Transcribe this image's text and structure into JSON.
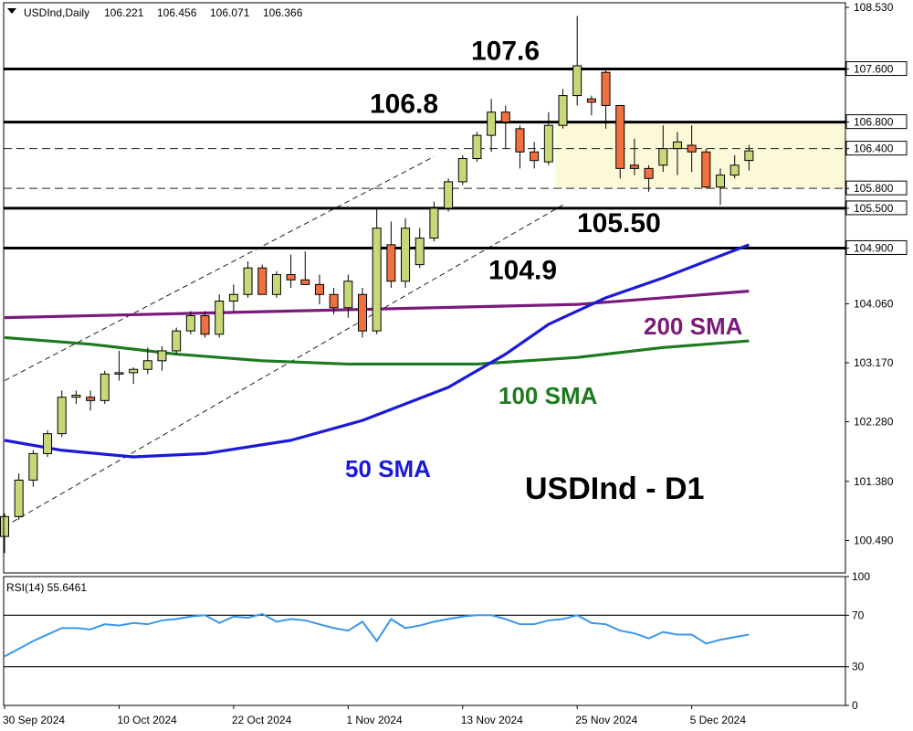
{
  "header": {
    "symbol": "USDInd,Daily",
    "open": "106.221",
    "high": "106.456",
    "low": "106.071",
    "close": "106.366"
  },
  "watermark": "USDInd - D1",
  "rsi_label": "RSI(14) 55.6461",
  "colors": {
    "bull": "#c8d878",
    "bear": "#f07040",
    "sma50": "#1a1ad8",
    "sma100": "#1e7a1e",
    "sma200": "#7a1a7a",
    "rsi": "#3a96e8",
    "zone": "#fbf9d8"
  },
  "chart_data": [
    {
      "type": "candlestick",
      "title": "USDInd - D1",
      "ylim": [
        100.0,
        108.6
      ],
      "y_ticks": [
        "108.530",
        "107.600",
        "106.800",
        "106.400",
        "105.800",
        "105.500",
        "104.900",
        "104.060",
        "103.170",
        "102.280",
        "101.380",
        "100.490"
      ],
      "x_ticks": [
        "30 Sep 2024",
        "10 Oct 2024",
        "22 Oct 2024",
        "1 Nov 2024",
        "13 Nov 2024",
        "25 Nov 2024",
        "5 Dec 2024"
      ],
      "x_tick_bars": [
        0,
        8,
        16,
        24,
        32,
        40,
        48
      ],
      "ohlc": [
        [
          100.55,
          100.9,
          100.3,
          100.85
        ],
        [
          100.85,
          101.5,
          100.8,
          101.4
        ],
        [
          101.4,
          101.85,
          101.3,
          101.8
        ],
        [
          101.8,
          102.15,
          101.75,
          102.1
        ],
        [
          102.1,
          102.75,
          102.05,
          102.65
        ],
        [
          102.65,
          102.75,
          102.55,
          102.68
        ],
        [
          102.65,
          102.75,
          102.45,
          102.6
        ],
        [
          102.6,
          103.05,
          102.55,
          103.0
        ],
        [
          103.0,
          103.35,
          102.9,
          103.02
        ],
        [
          103.02,
          103.1,
          102.85,
          103.07
        ],
        [
          103.07,
          103.4,
          103.0,
          103.2
        ],
        [
          103.2,
          103.42,
          103.05,
          103.35
        ],
        [
          103.35,
          103.7,
          103.3,
          103.65
        ],
        [
          103.65,
          103.95,
          103.6,
          103.88
        ],
        [
          103.88,
          103.95,
          103.55,
          103.6
        ],
        [
          103.6,
          104.2,
          103.55,
          104.1
        ],
        [
          104.1,
          104.35,
          103.95,
          104.2
        ],
        [
          104.2,
          104.7,
          104.15,
          104.6
        ],
        [
          104.6,
          104.65,
          104.2,
          104.2
        ],
        [
          104.2,
          104.55,
          104.15,
          104.5
        ],
        [
          104.5,
          104.8,
          104.3,
          104.42
        ],
        [
          104.42,
          104.85,
          104.35,
          104.35
        ],
        [
          104.35,
          104.5,
          104.05,
          104.2
        ],
        [
          104.2,
          104.3,
          103.9,
          104.0
        ],
        [
          104.0,
          104.5,
          103.85,
          104.4
        ],
        [
          104.2,
          104.3,
          103.55,
          103.65
        ],
        [
          103.65,
          105.5,
          103.6,
          105.2
        ],
        [
          104.95,
          105.3,
          104.3,
          104.4
        ],
        [
          104.4,
          105.35,
          104.3,
          105.2
        ],
        [
          104.65,
          105.2,
          104.6,
          105.05
        ],
        [
          105.05,
          105.6,
          105.0,
          105.5
        ],
        [
          105.5,
          105.95,
          105.45,
          105.9
        ],
        [
          105.9,
          106.3,
          105.85,
          106.25
        ],
        [
          106.25,
          106.65,
          106.2,
          106.6
        ],
        [
          106.6,
          107.15,
          106.35,
          106.95
        ],
        [
          106.95,
          107.05,
          106.4,
          106.8
        ],
        [
          106.7,
          106.75,
          106.1,
          106.35
        ],
        [
          106.35,
          106.5,
          106.1,
          106.22
        ],
        [
          106.2,
          106.95,
          106.15,
          106.75
        ],
        [
          106.75,
          107.3,
          106.7,
          107.2
        ],
        [
          107.2,
          108.4,
          107.05,
          107.65
        ],
        [
          107.15,
          107.2,
          106.9,
          107.1
        ],
        [
          107.55,
          107.6,
          106.7,
          107.05
        ],
        [
          107.05,
          107.05,
          105.95,
          106.1
        ],
        [
          106.15,
          106.55,
          106.0,
          106.1
        ],
        [
          106.1,
          106.15,
          105.75,
          105.95
        ],
        [
          106.15,
          106.75,
          106.05,
          106.4
        ],
        [
          106.4,
          106.65,
          106.0,
          106.5
        ],
        [
          106.45,
          106.75,
          106.05,
          106.35
        ],
        [
          106.35,
          106.4,
          105.8,
          105.82
        ],
        [
          105.82,
          106.1,
          105.55,
          106.0
        ],
        [
          106.0,
          106.3,
          105.95,
          106.15
        ],
        [
          106.221,
          106.456,
          106.071,
          106.366
        ]
      ],
      "series": [
        {
          "name": "200 SMA",
          "color": "#7a1a7a",
          "values": [
            [
              0,
              103.85
            ],
            [
              20,
              103.95
            ],
            [
              40,
              104.05
            ],
            [
              52,
              104.25
            ]
          ]
        },
        {
          "name": "100 SMA",
          "color": "#1e7a1e",
          "values": [
            [
              0,
              103.55
            ],
            [
              6,
              103.45
            ],
            [
              12,
              103.3
            ],
            [
              18,
              103.2
            ],
            [
              24,
              103.15
            ],
            [
              33,
              103.15
            ],
            [
              40,
              103.25
            ],
            [
              46,
              103.4
            ],
            [
              52,
              103.5
            ]
          ]
        },
        {
          "name": "50 SMA",
          "color": "#1a1ad8",
          "values": [
            [
              0,
              102.0
            ],
            [
              4,
              101.85
            ],
            [
              9,
              101.75
            ],
            [
              14,
              101.8
            ],
            [
              20,
              102.0
            ],
            [
              25,
              102.3
            ],
            [
              31,
              102.8
            ],
            [
              35,
              103.3
            ],
            [
              38,
              103.75
            ],
            [
              42,
              104.15
            ],
            [
              46,
              104.45
            ],
            [
              52,
              104.95
            ]
          ]
        }
      ],
      "levels": [
        {
          "value": 107.6,
          "style": "solid",
          "label": "107.6"
        },
        {
          "value": 106.8,
          "style": "solid",
          "label": "106.8"
        },
        {
          "value": 106.4,
          "style": "dashed",
          "label": ""
        },
        {
          "value": 105.8,
          "style": "dashed",
          "label": ""
        },
        {
          "value": 105.5,
          "style": "solid",
          "label": "105.50"
        },
        {
          "value": 104.9,
          "style": "solid",
          "label": "104.9"
        }
      ],
      "channel_lines": [
        [
          [
            0,
            102.9
          ],
          [
            30,
            106.28
          ]
        ],
        [
          [
            0,
            100.7
          ],
          [
            39,
            105.55
          ]
        ]
      ],
      "zone": {
        "from_bar": 39,
        "y_low": 105.8,
        "y_high": 106.8
      },
      "sma_labels": [
        "50 SMA",
        "100 SMA",
        "200 SMA"
      ]
    },
    {
      "type": "line",
      "title": "RSI(14) 55.6461",
      "ylim": [
        0,
        100
      ],
      "y_ticks": [
        "100",
        "70",
        "30",
        "0"
      ],
      "levels": [
        70,
        30
      ],
      "values": [
        38,
        44,
        50,
        55,
        60,
        60,
        59,
        63,
        62,
        64,
        63,
        66,
        67,
        69,
        70,
        64,
        69,
        68,
        71,
        65,
        67,
        66,
        63,
        60,
        58,
        65,
        50,
        67,
        60,
        62,
        65,
        67,
        69,
        70,
        70,
        67,
        63,
        63,
        66,
        67,
        70,
        64,
        63,
        58,
        56,
        52,
        57,
        55,
        55,
        48,
        51,
        53,
        55
      ]
    }
  ]
}
